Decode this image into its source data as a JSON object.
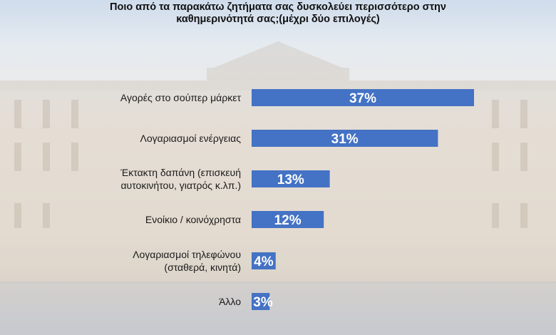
{
  "colors": {
    "bar": "#4472c4",
    "label_text": "#1a1a1a",
    "value_text": "#ffffff"
  },
  "chart_data": {
    "type": "bar",
    "orientation": "horizontal",
    "title": "Ποιο από τα παρακάτω ζητήματα σας δυσκολεύει περισσότερο στην καθημερινότητά σας;(μέχρι δύο επιλογές)",
    "categories": [
      [
        "Αγορές στο σούπερ μάρκετ"
      ],
      [
        "Λογαριασμοί ενέργειας"
      ],
      [
        "Έκτακτη δαπάνη (επισκευή",
        "αυτοκινήτου, γιατρός κ.λπ.)"
      ],
      [
        "Ενοίκιο / κοινόχρηστα"
      ],
      [
        "Λογαριασμοί τηλεφώνου",
        "(σταθερά, κινητά)"
      ],
      [
        "Άλλο"
      ]
    ],
    "values": [
      37,
      31,
      13,
      12,
      4,
      3
    ],
    "value_labels": [
      "37%",
      "31%",
      "13%",
      "12%",
      "4%",
      "3%"
    ],
    "xlim": [
      0,
      37
    ],
    "grid": false,
    "legend": "none"
  }
}
